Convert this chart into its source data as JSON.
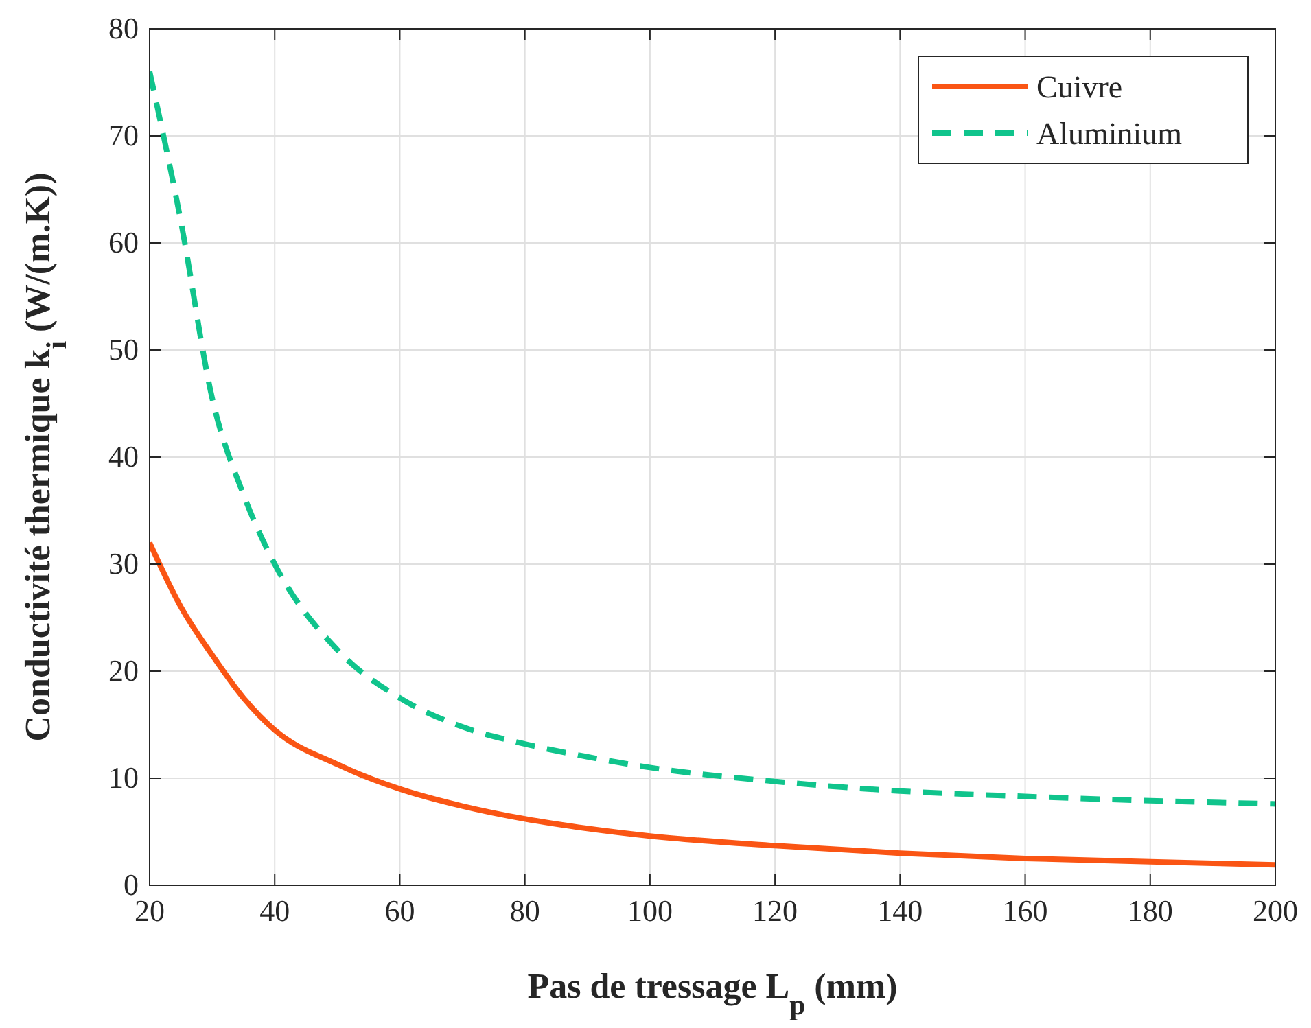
{
  "chart_data": {
    "type": "line",
    "xlabel": "Pas de tressage L$_{p}$ (mm)",
    "ylabel": "Conductivité thermique k$_{i}$ (W/(m.K))",
    "xlim": [
      20,
      200
    ],
    "ylim": [
      0,
      80
    ],
    "xticks": [
      20,
      40,
      60,
      80,
      100,
      120,
      140,
      160,
      180,
      200
    ],
    "yticks": [
      0,
      10,
      20,
      30,
      40,
      50,
      60,
      70,
      80
    ],
    "grid": true,
    "legend": "top right",
    "x": [
      20,
      25,
      30,
      35,
      40,
      50,
      60,
      70,
      80,
      90,
      100,
      120,
      140,
      160,
      180,
      200
    ],
    "series": [
      {
        "name": "Cuivre",
        "color": "#fa5514",
        "line_style": "solid",
        "values": [
          32,
          26,
          21.5,
          17.5,
          14.5,
          11.3,
          9,
          7.4,
          6.2,
          5.3,
          4.6,
          3.7,
          3,
          2.5,
          2.2,
          1.9
        ]
      },
      {
        "name": "Aluminium",
        "color": "#10c48c",
        "line_style": "dashed",
        "values": [
          76,
          62,
          45.5,
          36.5,
          30,
          22,
          17.5,
          14.8,
          13.2,
          12,
          11,
          9.7,
          8.8,
          8.3,
          7.9,
          7.6
        ]
      }
    ]
  }
}
